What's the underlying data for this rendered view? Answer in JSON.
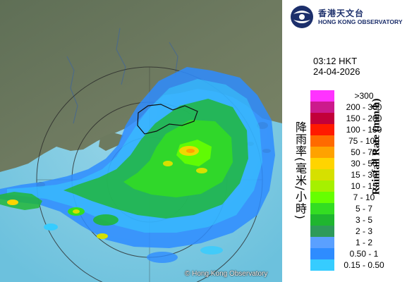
{
  "logo": {
    "name_zh": "香港天文台",
    "name_en": "HONG KONG OBSERVATORY",
    "icon": "hko-logo-icon",
    "color": "#1c2f6b"
  },
  "timestamp": {
    "time": "03:12 HKT",
    "date": "24-04-2026"
  },
  "copyright": "© Hong Kong Observatory",
  "legend": {
    "title_zh": "降雨率(毫米/小時)",
    "title_en": "Rainfall Rate (mm/h)",
    "entries": [
      {
        "label": ">300",
        "color": "#ff33ff"
      },
      {
        "label": "200 - 300",
        "color": "#cc1a8c"
      },
      {
        "label": "150 - 200",
        "color": "#c2003a"
      },
      {
        "label": "100 - 150",
        "color": "#ff1a00"
      },
      {
        "label": "75 - 100",
        "color": "#ff6a00"
      },
      {
        "label": "50 - 75",
        "color": "#ffa200"
      },
      {
        "label": "30 - 50",
        "color": "#ffd400"
      },
      {
        "label": "15 - 30",
        "color": "#d6e000"
      },
      {
        "label": "10 - 15",
        "color": "#a6f000"
      },
      {
        "label": "7 - 10",
        "color": "#66ff00"
      },
      {
        "label": "5 - 7",
        "color": "#33dd22"
      },
      {
        "label": "3 - 5",
        "color": "#1fb62f"
      },
      {
        "label": "2 - 3",
        "color": "#2e9a5a"
      },
      {
        "label": "1 - 2",
        "color": "#5aa0ff"
      },
      {
        "label": "0.50 - 1",
        "color": "#2e8cff"
      },
      {
        "label": "0.15 - 0.50",
        "color": "#36ccff"
      }
    ]
  }
}
